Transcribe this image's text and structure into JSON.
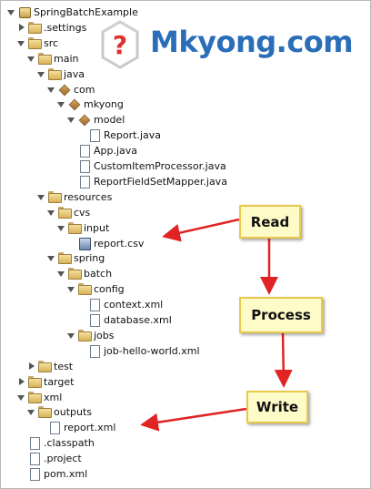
{
  "logo": {
    "text": "Mkyong.com",
    "mark": "?"
  },
  "tree": [
    {
      "label": "SpringBatchExample",
      "indent": 0,
      "twisty": "open",
      "icon": "project-icon"
    },
    {
      "label": ".settings",
      "indent": 1,
      "twisty": "closed",
      "icon": "folder-icon"
    },
    {
      "label": "src",
      "indent": 1,
      "twisty": "open",
      "icon": "folder-icon"
    },
    {
      "label": "main",
      "indent": 2,
      "twisty": "open",
      "icon": "folder-icon"
    },
    {
      "label": "java",
      "indent": 3,
      "twisty": "open",
      "icon": "folder-icon"
    },
    {
      "label": "com",
      "indent": 4,
      "twisty": "open",
      "icon": "package-icon"
    },
    {
      "label": "mkyong",
      "indent": 5,
      "twisty": "open",
      "icon": "package-icon"
    },
    {
      "label": "model",
      "indent": 6,
      "twisty": "open",
      "icon": "package-icon"
    },
    {
      "label": "Report.java",
      "indent": 7,
      "twisty": "none",
      "icon": "file-icon"
    },
    {
      "label": "App.java",
      "indent": 6,
      "twisty": "none",
      "icon": "file-icon"
    },
    {
      "label": "CustomItemProcessor.java",
      "indent": 6,
      "twisty": "none",
      "icon": "file-icon"
    },
    {
      "label": "ReportFieldSetMapper.java",
      "indent": 6,
      "twisty": "none",
      "icon": "file-icon"
    },
    {
      "label": "resources",
      "indent": 3,
      "twisty": "open",
      "icon": "folder-icon"
    },
    {
      "label": "cvs",
      "indent": 4,
      "twisty": "open",
      "icon": "folder-icon"
    },
    {
      "label": "input",
      "indent": 5,
      "twisty": "open",
      "icon": "folder-icon"
    },
    {
      "label": "report.csv",
      "indent": 6,
      "twisty": "none",
      "icon": "csv-icon"
    },
    {
      "label": "spring",
      "indent": 4,
      "twisty": "open",
      "icon": "folder-icon"
    },
    {
      "label": "batch",
      "indent": 5,
      "twisty": "open",
      "icon": "folder-icon"
    },
    {
      "label": "config",
      "indent": 6,
      "twisty": "open",
      "icon": "folder-icon"
    },
    {
      "label": "context.xml",
      "indent": 7,
      "twisty": "none",
      "icon": "file-icon"
    },
    {
      "label": "database.xml",
      "indent": 7,
      "twisty": "none",
      "icon": "file-icon"
    },
    {
      "label": "jobs",
      "indent": 6,
      "twisty": "open",
      "icon": "folder-icon"
    },
    {
      "label": "job-hello-world.xml",
      "indent": 7,
      "twisty": "none",
      "icon": "file-icon"
    },
    {
      "label": "test",
      "indent": 2,
      "twisty": "closed",
      "icon": "folder-icon"
    },
    {
      "label": "target",
      "indent": 1,
      "twisty": "closed",
      "icon": "folder-icon"
    },
    {
      "label": "xml",
      "indent": 1,
      "twisty": "open",
      "icon": "folder-icon"
    },
    {
      "label": "outputs",
      "indent": 2,
      "twisty": "open",
      "icon": "folder-icon"
    },
    {
      "label": "report.xml",
      "indent": 3,
      "twisty": "none",
      "icon": "file-icon"
    },
    {
      "label": ".classpath",
      "indent": 1,
      "twisty": "none",
      "icon": "file-icon"
    },
    {
      "label": ".project",
      "indent": 1,
      "twisty": "none",
      "icon": "file-icon"
    },
    {
      "label": "pom.xml",
      "indent": 1,
      "twisty": "none",
      "icon": "file-icon"
    }
  ],
  "notes": {
    "read": "Read",
    "process": "Process",
    "write": "Write"
  },
  "colors": {
    "accent": "#2a6db8",
    "arrow": "#e02424",
    "note_bg": "#fdfbc8",
    "note_border": "#e8c84c"
  }
}
